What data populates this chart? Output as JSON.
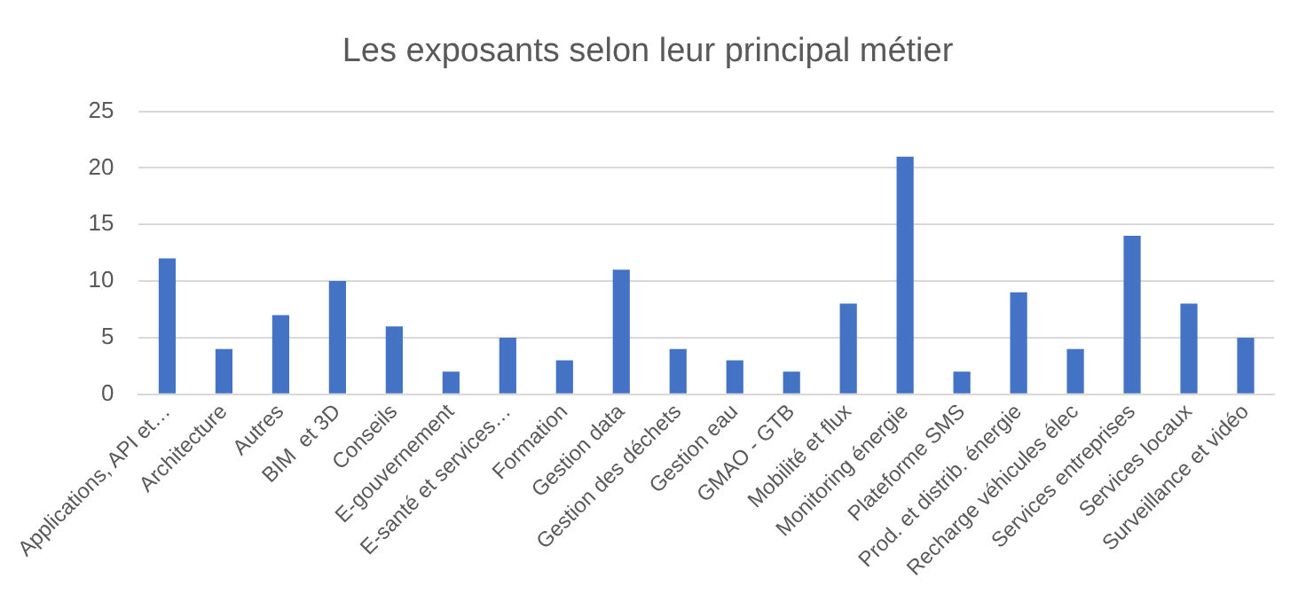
{
  "chart_data": {
    "type": "bar",
    "title": "Les exposants selon leur principal métier",
    "categories": [
      "Applications, API et…",
      "Architecture",
      "Autres",
      "BIM  et 3D",
      "Conseils",
      "E-gouvernement",
      "E-santé et services…",
      "Formation",
      "Gestion data",
      "Gestion des déchets",
      "Gestion eau",
      "GMAO - GTB",
      "Mobilité et flux",
      "Monitoring énergie",
      "Plateforme SMS",
      "Prod. et distrib. énergie",
      "Recharge véhicules élec",
      "Services entreprises",
      "Services locaux",
      "Surveillance et vidéo"
    ],
    "values": [
      12,
      4,
      7,
      10,
      6,
      2,
      5,
      3,
      11,
      4,
      3,
      2,
      8,
      21,
      2,
      9,
      4,
      14,
      8,
      5
    ],
    "color": "#4472c4",
    "ylim": [
      0,
      25
    ],
    "yticks": [
      0,
      5,
      10,
      15,
      20,
      25
    ],
    "grid": "y",
    "legend": false
  }
}
